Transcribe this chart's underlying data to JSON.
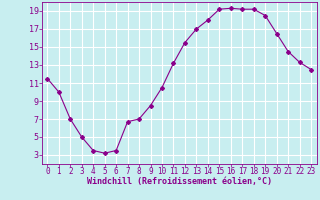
{
  "x": [
    0,
    1,
    2,
    3,
    4,
    5,
    6,
    7,
    8,
    9,
    10,
    11,
    12,
    13,
    14,
    15,
    16,
    17,
    18,
    19,
    20,
    21,
    22,
    23
  ],
  "y": [
    11.5,
    10.0,
    7.0,
    5.0,
    3.5,
    3.2,
    3.5,
    6.7,
    7.0,
    8.5,
    10.5,
    13.2,
    15.5,
    17.0,
    18.0,
    19.2,
    19.3,
    19.2,
    19.2,
    18.5,
    16.5,
    14.5,
    13.3,
    12.5
  ],
  "line_color": "#8B008B",
  "marker": "D",
  "marker_size": 2,
  "bg_color": "#c8eef0",
  "grid_color": "#ffffff",
  "xlabel": "Windchill (Refroidissement éolien,°C)",
  "ylabel": "",
  "xlim": [
    -0.5,
    23.5
  ],
  "ylim": [
    2,
    20
  ],
  "yticks": [
    3,
    5,
    7,
    9,
    11,
    13,
    15,
    17,
    19
  ],
  "xticks": [
    0,
    1,
    2,
    3,
    4,
    5,
    6,
    7,
    8,
    9,
    10,
    11,
    12,
    13,
    14,
    15,
    16,
    17,
    18,
    19,
    20,
    21,
    22,
    23
  ],
  "label_color": "#8B008B",
  "tick_color": "#8B008B",
  "spine_color": "#8B008B",
  "xlabel_fontsize": 6.0,
  "ytick_fontsize": 6.0,
  "xtick_fontsize": 5.5
}
